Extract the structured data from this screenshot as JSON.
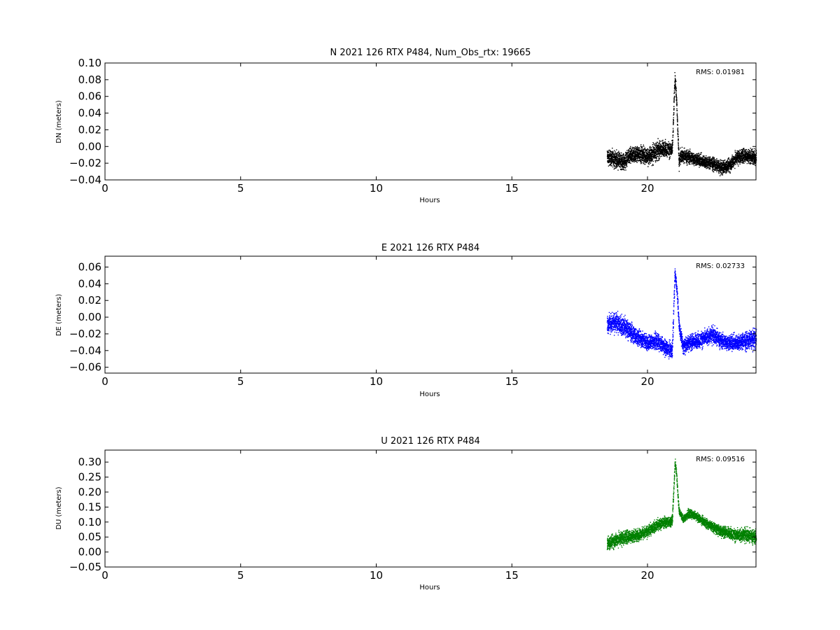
{
  "figure": {
    "background": "#ffffff"
  },
  "chart_data": [
    {
      "type": "scatter",
      "component": "N",
      "title": "N 2021 126 RTX  P484, Num_Obs_rtx: 19665",
      "xlabel": "Hours",
      "ylabel": "DN (meters)",
      "xlim": [
        0,
        24
      ],
      "ylim": [
        -0.04,
        0.1
      ],
      "xticks": [
        0,
        5,
        10,
        15,
        20
      ],
      "yticks": [
        "0.10",
        "0.08",
        "0.06",
        "0.04",
        "0.02",
        "0.00",
        "−0.02",
        "−0.04"
      ],
      "ytick_values": [
        0.1,
        0.08,
        0.06,
        0.04,
        0.02,
        0.0,
        -0.02,
        -0.04
      ],
      "color": "#000000",
      "annotation": "RMS:  0.01981",
      "annotation_color": "#0000ff",
      "series": [
        {
          "x": [
            18.5,
            18.8,
            19.1,
            19.4,
            19.7,
            20.0,
            20.3,
            20.6,
            20.9,
            21.0,
            21.05,
            21.1,
            21.15,
            21.2,
            21.5,
            21.8,
            22.1,
            22.4,
            22.7,
            23.0,
            23.3,
            23.6,
            24.0
          ],
          "y": [
            -0.012,
            -0.015,
            -0.018,
            -0.01,
            -0.008,
            -0.012,
            -0.005,
            -0.002,
            -0.004,
            0.085,
            0.06,
            0.02,
            -0.02,
            -0.01,
            -0.012,
            -0.015,
            -0.018,
            -0.02,
            -0.025,
            -0.022,
            -0.012,
            -0.01,
            -0.012
          ],
          "spread": [
            0.01,
            0.01,
            0.011,
            0.01,
            0.01,
            0.012,
            0.012,
            0.01,
            0.009,
            0.008,
            0.008,
            0.008,
            0.008,
            0.009,
            0.009,
            0.008,
            0.008,
            0.008,
            0.008,
            0.009,
            0.009,
            0.009,
            0.009
          ]
        }
      ]
    },
    {
      "type": "scatter",
      "component": "E",
      "title": "E 2021 126 RTX  P484",
      "xlabel": "Hours",
      "ylabel": "DE (meters)",
      "xlim": [
        0,
        24
      ],
      "ylim": [
        -0.067,
        0.073
      ],
      "xticks": [
        0,
        5,
        10,
        15,
        20
      ],
      "yticks": [
        "0.06",
        "0.04",
        "0.02",
        "0.00",
        "−0.02",
        "−0.04",
        "−0.06"
      ],
      "ytick_values": [
        0.06,
        0.04,
        0.02,
        0.0,
        -0.02,
        -0.04,
        -0.06
      ],
      "color": "#0000ff",
      "annotation": "RMS:  0.02733",
      "annotation_color": "#0000ff",
      "series": [
        {
          "x": [
            18.5,
            18.8,
            19.1,
            19.4,
            19.7,
            20.0,
            20.3,
            20.6,
            20.9,
            21.0,
            21.05,
            21.1,
            21.15,
            21.3,
            21.5,
            21.8,
            22.1,
            22.4,
            22.7,
            23.0,
            23.3,
            23.6,
            24.0
          ],
          "y": [
            -0.008,
            -0.006,
            -0.01,
            -0.018,
            -0.025,
            -0.03,
            -0.028,
            -0.035,
            -0.04,
            0.055,
            0.04,
            0.02,
            -0.01,
            -0.035,
            -0.03,
            -0.028,
            -0.025,
            -0.02,
            -0.028,
            -0.03,
            -0.03,
            -0.028,
            -0.025
          ],
          "spread": [
            0.012,
            0.012,
            0.012,
            0.012,
            0.01,
            0.01,
            0.01,
            0.01,
            0.01,
            0.008,
            0.008,
            0.008,
            0.008,
            0.01,
            0.01,
            0.01,
            0.01,
            0.011,
            0.01,
            0.01,
            0.01,
            0.011,
            0.012
          ]
        }
      ]
    },
    {
      "type": "scatter",
      "component": "U",
      "title": "U 2021 126 RTX  P484",
      "xlabel": "Hours",
      "ylabel": "DU (meters)",
      "xlim": [
        0,
        24
      ],
      "ylim": [
        -0.05,
        0.34
      ],
      "xticks": [
        0,
        5,
        10,
        15,
        20
      ],
      "yticks": [
        "0.30",
        "0.25",
        "0.20",
        "0.15",
        "0.10",
        "0.05",
        "0.00",
        "−0.05"
      ],
      "ytick_values": [
        0.3,
        0.25,
        0.2,
        0.15,
        0.1,
        0.05,
        0.0,
        -0.05
      ],
      "color": "#008000",
      "annotation": "RMS:  0.09516",
      "annotation_color": "#0000ff",
      "series": [
        {
          "x": [
            18.5,
            18.8,
            19.1,
            19.4,
            19.7,
            20.0,
            20.3,
            20.6,
            20.9,
            21.0,
            21.05,
            21.1,
            21.15,
            21.3,
            21.5,
            21.8,
            22.1,
            22.4,
            22.7,
            23.0,
            23.3,
            23.6,
            24.0
          ],
          "y": [
            0.03,
            0.04,
            0.05,
            0.055,
            0.06,
            0.07,
            0.09,
            0.1,
            0.105,
            0.3,
            0.27,
            0.2,
            0.14,
            0.11,
            0.13,
            0.12,
            0.1,
            0.085,
            0.07,
            0.065,
            0.055,
            0.06,
            0.05
          ],
          "spread": [
            0.025,
            0.025,
            0.025,
            0.022,
            0.02,
            0.02,
            0.02,
            0.02,
            0.018,
            0.018,
            0.015,
            0.015,
            0.012,
            0.015,
            0.015,
            0.015,
            0.016,
            0.018,
            0.02,
            0.02,
            0.022,
            0.025,
            0.025
          ]
        }
      ]
    }
  ]
}
